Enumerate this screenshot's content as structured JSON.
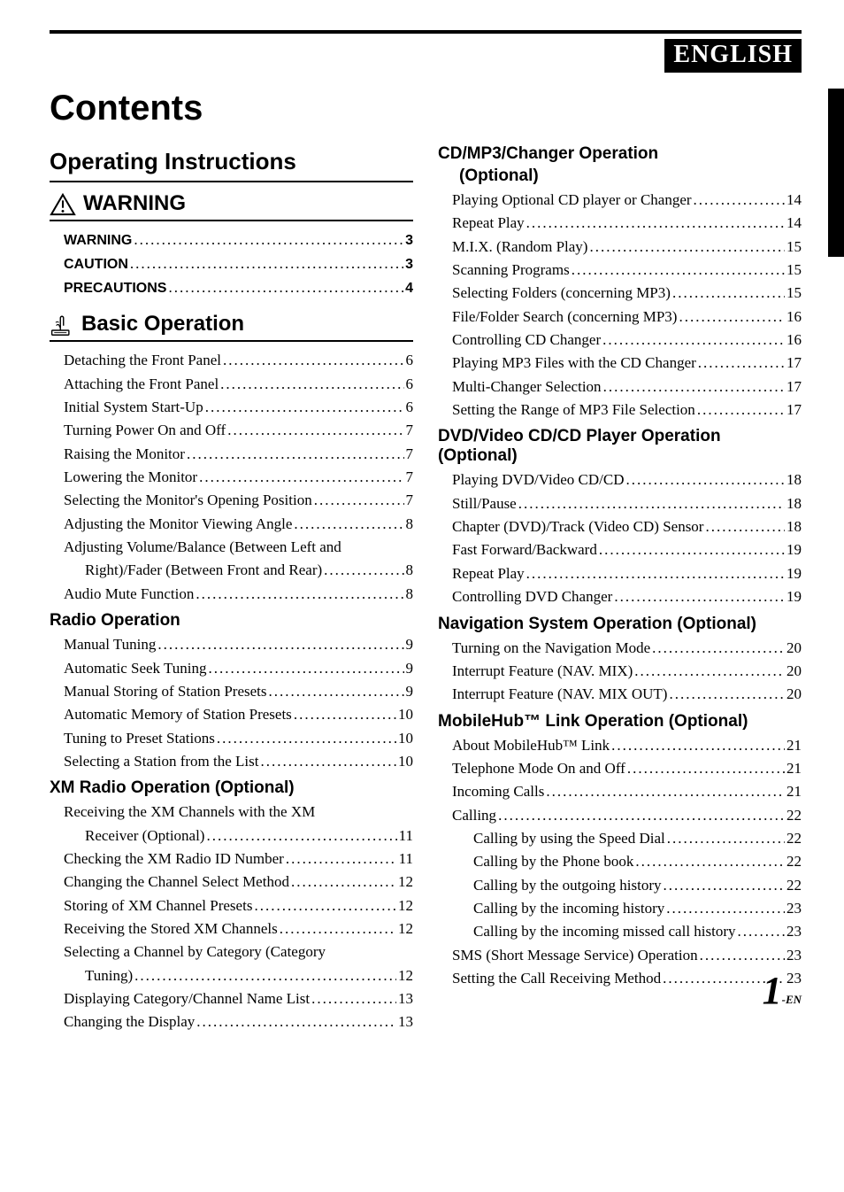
{
  "language_badge": "ENGLISH",
  "contents_title": "Contents",
  "operating_instructions": "Operating Instructions",
  "warning_heading": "WARNING",
  "basic_operation_heading": "Basic Operation",
  "page_number": "1",
  "page_suffix": "-EN",
  "warning_block": [
    {
      "text": "WARNING",
      "page": "3"
    },
    {
      "text": "CAUTION",
      "page": "3"
    },
    {
      "text": "PRECAUTIONS",
      "page": "4"
    }
  ],
  "basic_operation": [
    {
      "text": "Detaching the Front Panel",
      "page": "6"
    },
    {
      "text": "Attaching the Front Panel",
      "page": "6"
    },
    {
      "text": "Initial System Start-Up",
      "page": "6"
    },
    {
      "text": "Turning Power On and Off",
      "page": "7"
    },
    {
      "text": "Raising the Monitor",
      "page": "7"
    },
    {
      "text": "Lowering the Monitor",
      "page": "7"
    },
    {
      "text": "Selecting the Monitor's Opening Position",
      "page": "7"
    },
    {
      "text": "Adjusting the Monitor Viewing Angle",
      "page": "8"
    },
    {
      "text": "Adjusting Volume/Balance (Between Left and",
      "page": ""
    },
    {
      "text": "Right)/Fader (Between Front and Rear)",
      "page": "8",
      "indent": true
    },
    {
      "text": "Audio Mute Function",
      "page": "8"
    }
  ],
  "radio_title": "Radio Operation",
  "radio_operation": [
    {
      "text": "Manual Tuning",
      "page": "9"
    },
    {
      "text": "Automatic Seek Tuning",
      "page": "9"
    },
    {
      "text": "Manual Storing of Station Presets",
      "page": "9"
    },
    {
      "text": "Automatic Memory of Station Presets",
      "page": "10"
    },
    {
      "text": "Tuning to Preset Stations",
      "page": "10"
    },
    {
      "text": "Selecting a Station from the List",
      "page": "10"
    }
  ],
  "xm_title": "XM Radio Operation (Optional)",
  "xm_operation": [
    {
      "text": "Receiving the XM Channels with the XM",
      "page": ""
    },
    {
      "text": "Receiver (Optional)",
      "page": "11",
      "indent": true
    },
    {
      "text": "Checking the XM Radio ID Number",
      "page": "11"
    },
    {
      "text": "Changing the Channel Select Method",
      "page": "12"
    },
    {
      "text": "Storing of XM Channel Presets",
      "page": "12"
    },
    {
      "text": "Receiving the Stored XM Channels",
      "page": "12"
    },
    {
      "text": "Selecting a Channel by Category (Category",
      "page": ""
    },
    {
      "text": "Tuning)",
      "page": "12",
      "indent": true
    },
    {
      "text": "Displaying Category/Channel Name List",
      "page": "13"
    },
    {
      "text": "Changing the Display",
      "page": "13"
    }
  ],
  "cd_title": "CD/MP3/Changer Operation",
  "cd_sub": "(Optional)",
  "cd_operation": [
    {
      "text": "Playing Optional CD player or Changer",
      "page": "14"
    },
    {
      "text": "Repeat Play",
      "page": "14"
    },
    {
      "text": "M.I.X. (Random Play)",
      "page": "15"
    },
    {
      "text": "Scanning Programs",
      "page": "15"
    },
    {
      "text": "Selecting Folders (concerning MP3)",
      "page": "15"
    },
    {
      "text": "File/Folder Search (concerning MP3)",
      "page": "16"
    },
    {
      "text": "Controlling CD Changer",
      "page": "16"
    },
    {
      "text": "Playing MP3 Files with the CD Changer",
      "page": "17"
    },
    {
      "text": "Multi-Changer Selection",
      "page": "17"
    },
    {
      "text": "Setting the Range of MP3 File Selection",
      "page": "17"
    }
  ],
  "dvd_title": "DVD/Video CD/CD Player Operation (Optional)",
  "dvd_operation": [
    {
      "text": "Playing DVD/Video CD/CD",
      "page": "18"
    },
    {
      "text": "Still/Pause",
      "page": "18"
    },
    {
      "text": "Chapter (DVD)/Track (Video CD) Sensor",
      "page": "18"
    },
    {
      "text": "Fast Forward/Backward",
      "page": "19"
    },
    {
      "text": "Repeat Play",
      "page": "19"
    },
    {
      "text": "Controlling DVD Changer",
      "page": "19"
    }
  ],
  "nav_title": "Navigation System Operation (Optional)",
  "nav_operation": [
    {
      "text": "Turning on the Navigation Mode",
      "page": "20"
    },
    {
      "text": "Interrupt Feature (NAV. MIX)",
      "page": "20"
    },
    {
      "text": "Interrupt Feature (NAV. MIX OUT)",
      "page": "20"
    }
  ],
  "mobile_title": "MobileHub™ Link Operation (Optional)",
  "mobile_operation": [
    {
      "text": "About MobileHub™ Link",
      "page": "21"
    },
    {
      "text": "Telephone Mode On and Off",
      "page": "21"
    },
    {
      "text": "Incoming Calls",
      "page": "21"
    },
    {
      "text": "Calling",
      "page": "22"
    },
    {
      "text": "Calling by using the Speed Dial",
      "page": "22",
      "indent": true
    },
    {
      "text": "Calling by the Phone book",
      "page": "22",
      "indent": true
    },
    {
      "text": "Calling by the outgoing history",
      "page": "22",
      "indent": true
    },
    {
      "text": "Calling by the incoming history",
      "page": "23",
      "indent": true
    },
    {
      "text": "Calling by the incoming missed call history",
      "page": "23",
      "indent": true
    },
    {
      "text": "SMS (Short Message Service) Operation",
      "page": "23"
    },
    {
      "text": "Setting the Call Receiving Method",
      "page": "23"
    }
  ]
}
